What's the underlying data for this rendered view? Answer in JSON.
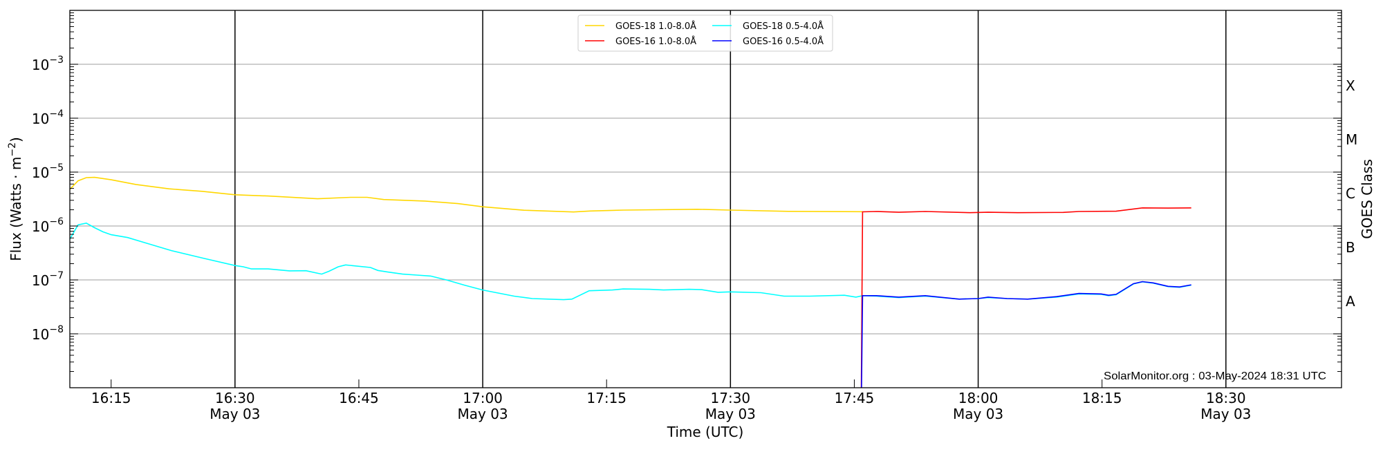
{
  "chart_data": {
    "type": "line",
    "title": "",
    "xlabel": "Time (UTC)",
    "ylabel": "Flux (Watts · m⁻²)",
    "ylabel_right": "GOES Class",
    "yscale": "log",
    "ylim": [
      1e-09,
      0.01
    ],
    "xlim": [
      "16:10",
      "18:44"
    ],
    "date_label": "May 03",
    "grid": true,
    "legend_position": "top-center",
    "y_ticks": [
      {
        "value": 1e-08,
        "base": "10",
        "exp": "−8"
      },
      {
        "value": 1e-07,
        "base": "10",
        "exp": "−7"
      },
      {
        "value": 1e-06,
        "base": "10",
        "exp": "−6"
      },
      {
        "value": 1e-05,
        "base": "10",
        "exp": "−5"
      },
      {
        "value": 0.0001,
        "base": "10",
        "exp": "−4"
      },
      {
        "value": 0.001,
        "base": "10",
        "exp": "−3"
      }
    ],
    "x_ticks": [
      {
        "time": "16:15",
        "label": "16:15",
        "major": false
      },
      {
        "time": "16:30",
        "label": "16:30",
        "major": true
      },
      {
        "time": "16:45",
        "label": "16:45",
        "major": false
      },
      {
        "time": "17:00",
        "label": "17:00",
        "major": true
      },
      {
        "time": "17:15",
        "label": "17:15",
        "major": false
      },
      {
        "time": "17:30",
        "label": "17:30",
        "major": true
      },
      {
        "time": "17:45",
        "label": "17:45",
        "major": false
      },
      {
        "time": "18:00",
        "label": "18:00",
        "major": true
      },
      {
        "time": "18:15",
        "label": "18:15",
        "major": false
      },
      {
        "time": "18:30",
        "label": "18:30",
        "major": true
      }
    ],
    "goes_classes": [
      {
        "label": "A",
        "value": 4e-08
      },
      {
        "label": "B",
        "value": 4e-07
      },
      {
        "label": "C",
        "value": 4e-06
      },
      {
        "label": "M",
        "value": 4e-05
      },
      {
        "label": "X",
        "value": 0.0004
      }
    ],
    "annotation": "SolarMonitor.org : 03-May-2024 18:31 UTC",
    "series": [
      {
        "name": "GOES-18 1.0-8.0Å",
        "color": "#ffd700",
        "points": [
          [
            "16:10",
            4.8e-06
          ],
          [
            "16:11",
            6.9e-06
          ],
          [
            "16:12",
            7.9e-06
          ],
          [
            "16:13",
            8e-06
          ],
          [
            "16:15",
            7.2e-06
          ],
          [
            "16:18",
            5.9e-06
          ],
          [
            "16:22",
            4.9e-06
          ],
          [
            "16:26",
            4.4e-06
          ],
          [
            "16:30",
            3.8e-06
          ],
          [
            "16:34",
            3.6e-06
          ],
          [
            "16:40",
            3.2e-06
          ],
          [
            "16:44",
            3.4e-06
          ],
          [
            "16:46",
            3.4e-06
          ],
          [
            "16:48",
            3.1e-06
          ],
          [
            "16:53",
            2.9e-06
          ],
          [
            "16:57",
            2.6e-06
          ],
          [
            "17:00",
            2.27e-06
          ],
          [
            "17:05",
            1.96e-06
          ],
          [
            "17:11",
            1.82e-06
          ],
          [
            "17:13",
            1.9e-06
          ],
          [
            "17:17",
            1.97e-06
          ],
          [
            "17:26",
            2.04e-06
          ],
          [
            "17:30",
            1.97e-06
          ],
          [
            "17:37",
            1.87e-06
          ],
          [
            "17:46",
            1.84e-06
          ]
        ]
      },
      {
        "name": "GOES-18 0.5-4.0Å",
        "color": "#00ffff",
        "points": [
          [
            "16:10",
            5.7e-07
          ],
          [
            "16:11",
            1.05e-06
          ],
          [
            "16:12",
            1.13e-06
          ],
          [
            "16:13",
            9.3e-07
          ],
          [
            "16:14",
            7.8e-07
          ],
          [
            "16:15",
            6.9e-07
          ],
          [
            "16:17",
            6.1e-07
          ],
          [
            "16:19.5",
            4.7e-07
          ],
          [
            "16:22.3",
            3.5e-07
          ],
          [
            "16:26.3",
            2.5e-07
          ],
          [
            "16:30",
            1.85e-07
          ],
          [
            "16:31",
            1.75e-07
          ],
          [
            "16:32",
            1.6e-07
          ],
          [
            "16:34",
            1.6e-07
          ],
          [
            "16:36.6",
            1.47e-07
          ],
          [
            "16:38.6",
            1.48e-07
          ],
          [
            "16:40.5",
            1.28e-07
          ],
          [
            "16:41.4",
            1.45e-07
          ],
          [
            "16:42.5",
            1.75e-07
          ],
          [
            "16:43.4",
            1.9e-07
          ],
          [
            "16:46.4",
            1.7e-07
          ],
          [
            "16:47.3",
            1.5e-07
          ],
          [
            "16:48.5",
            1.4e-07
          ],
          [
            "16:50.3",
            1.28e-07
          ],
          [
            "16:52",
            1.23e-07
          ],
          [
            "16:53.7",
            1.18e-07
          ],
          [
            "16:55.6",
            1e-07
          ],
          [
            "16:57.8",
            8e-08
          ],
          [
            "17:00",
            6.5e-08
          ],
          [
            "17:03.8",
            5e-08
          ],
          [
            "17:06",
            4.5e-08
          ],
          [
            "17:09.8",
            4.3e-08
          ],
          [
            "17:10.8",
            4.4e-08
          ],
          [
            "17:12.9",
            6.3e-08
          ],
          [
            "17:15.7",
            6.5e-08
          ],
          [
            "17:17",
            6.8e-08
          ],
          [
            "17:20.2",
            6.7e-08
          ],
          [
            "17:21.9",
            6.5e-08
          ],
          [
            "17:25",
            6.7e-08
          ],
          [
            "17:26.5",
            6.6e-08
          ],
          [
            "17:28.5",
            5.9e-08
          ],
          [
            "17:30",
            6e-08
          ],
          [
            "17:33.7",
            5.8e-08
          ],
          [
            "17:36.5",
            5e-08
          ],
          [
            "17:39.6",
            5e-08
          ],
          [
            "17:43.8",
            5.2e-08
          ],
          [
            "17:45.2",
            4.8e-08
          ],
          [
            "17:46",
            5.1e-08
          ],
          [
            "17:47.7",
            5e-08
          ],
          [
            "17:50.4",
            4.7e-08
          ],
          [
            "17:53.6",
            5e-08
          ],
          [
            "17:57.7",
            4.4e-08
          ],
          [
            "18:00",
            4.5e-08
          ],
          [
            "18:01.2",
            4.7e-08
          ],
          [
            "18:03.5",
            4.5e-08
          ],
          [
            "18:06",
            4.4e-08
          ],
          [
            "18:09.5",
            4.8e-08
          ],
          [
            "18:12.2",
            5.5e-08
          ],
          [
            "18:14.9",
            5.4e-08
          ],
          [
            "18:15.8",
            5.1e-08
          ],
          [
            "18:16.7",
            5.3e-08
          ],
          [
            "18:18.8",
            8.4e-08
          ],
          [
            "18:19.9",
            9.2e-08
          ],
          [
            "18:21.2",
            8.7e-08
          ],
          [
            "18:23",
            7.5e-08
          ],
          [
            "18:24.4",
            7.3e-08
          ],
          [
            "18:25.8",
            8e-08
          ]
        ]
      },
      {
        "name": "GOES-16 1.0-8.0Å",
        "color": "#ff0000",
        "points": [
          [
            "17:45.8",
            1e-10
          ],
          [
            "17:46",
            1.83e-06
          ],
          [
            "17:47.7",
            1.86e-06
          ],
          [
            "17:50.4",
            1.8e-06
          ],
          [
            "17:53.6",
            1.86e-06
          ],
          [
            "17:59",
            1.77e-06
          ],
          [
            "18:01.2",
            1.8e-06
          ],
          [
            "18:04.8",
            1.77e-06
          ],
          [
            "18:10.3",
            1.79e-06
          ],
          [
            "18:12.2",
            1.86e-06
          ],
          [
            "18:16.7",
            1.88e-06
          ],
          [
            "18:19.9",
            2.17e-06
          ],
          [
            "18:23",
            2.15e-06
          ],
          [
            "18:25.8",
            2.17e-06
          ]
        ]
      },
      {
        "name": "GOES-16 0.5-4.0Å",
        "color": "#0000ff",
        "points": [
          [
            "17:45.8",
            1e-10
          ],
          [
            "17:46",
            5.1e-08
          ],
          [
            "17:47.7",
            5.1e-08
          ],
          [
            "17:50.4",
            4.8e-08
          ],
          [
            "17:53.6",
            5.1e-08
          ],
          [
            "17:57.7",
            4.4e-08
          ],
          [
            "18:00",
            4.5e-08
          ],
          [
            "18:01.2",
            4.8e-08
          ],
          [
            "18:03.5",
            4.5e-08
          ],
          [
            "18:06",
            4.4e-08
          ],
          [
            "18:09.5",
            4.9e-08
          ],
          [
            "18:12.2",
            5.6e-08
          ],
          [
            "18:14.9",
            5.5e-08
          ],
          [
            "18:15.8",
            5.2e-08
          ],
          [
            "18:16.7",
            5.4e-08
          ],
          [
            "18:18.8",
            8.5e-08
          ],
          [
            "18:19.9",
            9.3e-08
          ],
          [
            "18:21.2",
            8.8e-08
          ],
          [
            "18:23",
            7.6e-08
          ],
          [
            "18:24.4",
            7.4e-08
          ],
          [
            "18:25.8",
            8.1e-08
          ]
        ]
      }
    ],
    "legend_order": [
      0,
      1,
      2,
      3
    ]
  }
}
